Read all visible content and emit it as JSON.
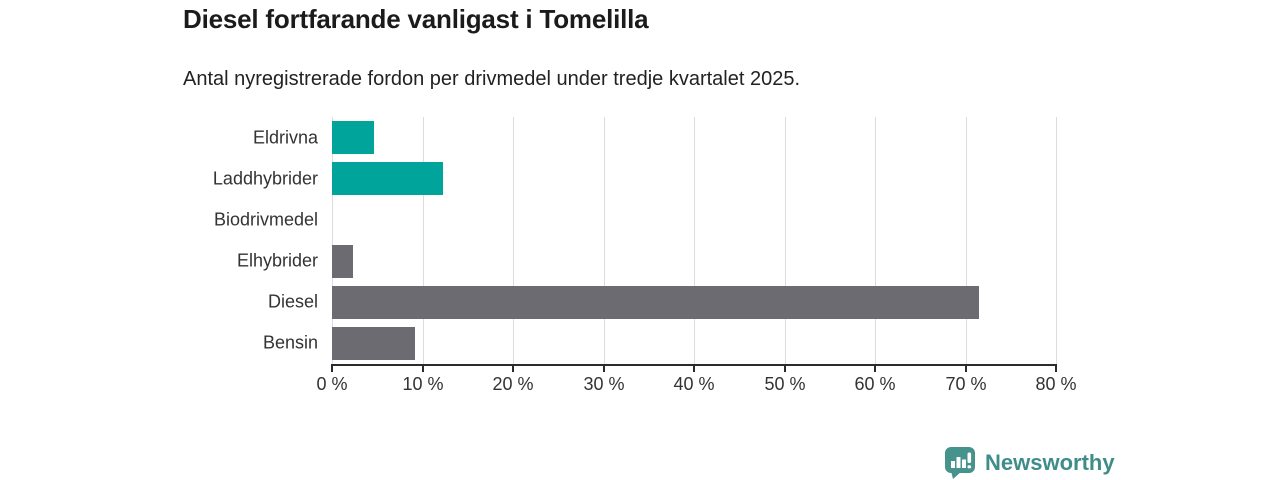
{
  "chart_data": {
    "type": "bar",
    "orientation": "horizontal",
    "title": "Diesel fortfarande vanligast i Tomelilla",
    "subtitle": "Antal nyregistrerade fordon per drivmedel under tredje kvartalet 2025.",
    "categories": [
      "Eldrivna",
      "Laddhybrider",
      "Biodrivmedel",
      "Elhybrider",
      "Diesel",
      "Bensin"
    ],
    "values": [
      4.6,
      12.3,
      0,
      2.3,
      71.5,
      9.2
    ],
    "unit": "%",
    "bar_colors": [
      "#00a49a",
      "#00a49a",
      "#00a49a",
      "#6c6b72",
      "#6c6b72",
      "#6c6b72"
    ],
    "xlim": [
      0,
      80
    ],
    "xticks": [
      0,
      10,
      20,
      30,
      40,
      50,
      60,
      70,
      80
    ],
    "xtick_suffix": " %",
    "grid": "vertical",
    "legend": "none",
    "gridline_color": "#dcdcdc",
    "axis_color": "#2b2b2b",
    "text_color": "#333333"
  },
  "branding": {
    "name": "Newsworthy",
    "color": "#3e8d89",
    "icon": "newsworthy-speech-bubble-chart-icon",
    "icon_color": "#46928d"
  }
}
